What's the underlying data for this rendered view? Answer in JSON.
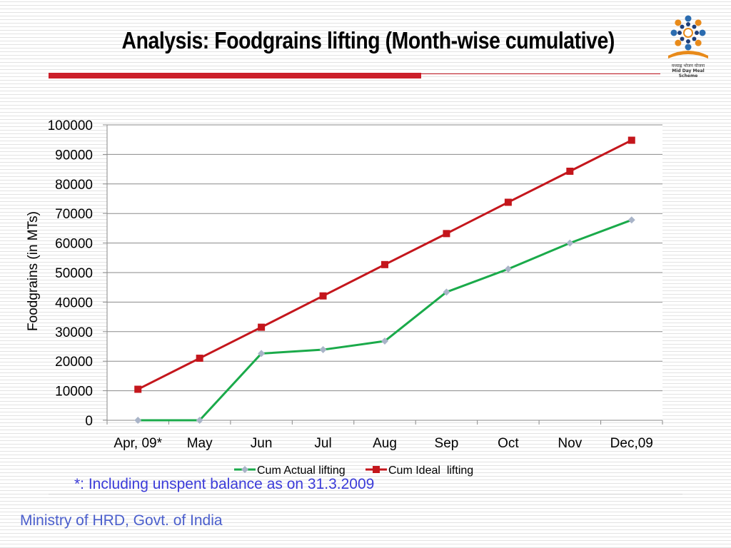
{
  "slide": {
    "title": "Analysis: Foodgrains lifting (Month-wise cumulative)",
    "footnote": "*: Including unspent balance  as on 31.3.2009",
    "footer": "Ministry of HRD, Govt. of India",
    "logo": {
      "icon": "mid-day-meal-logo",
      "caption_hindi": "मध्याह्न भोजन योजना",
      "caption": "Mid Day Meal Scheme"
    }
  },
  "colors": {
    "accent_red": "#cc1f2a",
    "actual": "#1aaa4a",
    "ideal": "#c4161c",
    "footnote": "#3b3bd9",
    "footer": "#4a5ecc"
  },
  "chart_data": {
    "type": "line",
    "title": "",
    "xlabel": "",
    "ylabel": "Foodgrains (in MTs)",
    "ylim": [
      0,
      100000
    ],
    "ytick_step": 10000,
    "grid": true,
    "legend_position": "bottom",
    "categories": [
      "Apr, 09*",
      "May",
      "Jun",
      "Jul",
      "Aug",
      "Sep",
      "Oct",
      "Nov",
      "Dec,09"
    ],
    "series": [
      {
        "name": "Cum Actual lifting",
        "color": "#1aaa4a",
        "marker": "diamond",
        "marker_color": "#a9b4c8",
        "values": [
          0,
          0,
          22600,
          23900,
          26800,
          43400,
          51200,
          60000,
          67800
        ]
      },
      {
        "name": "Cum Ideal  lifting",
        "color": "#c4161c",
        "marker": "square",
        "marker_color": "#c4161c",
        "values": [
          10500,
          21000,
          31500,
          42100,
          52700,
          63200,
          73800,
          84300,
          94800
        ]
      }
    ]
  }
}
